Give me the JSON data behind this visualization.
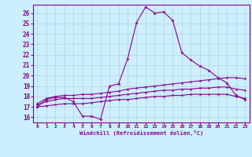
{
  "xlabel": "Windchill (Refroidissement éolien,°C)",
  "background_color": "#cceeff",
  "grid_color": "#aacccc",
  "line_color": "#880088",
  "xlim": [
    -0.5,
    23.5
  ],
  "ylim": [
    15.5,
    26.8
  ],
  "yticks": [
    16,
    17,
    18,
    19,
    20,
    21,
    22,
    23,
    24,
    25,
    26
  ],
  "xticks": [
    0,
    1,
    2,
    3,
    4,
    5,
    6,
    7,
    8,
    9,
    10,
    11,
    12,
    13,
    14,
    15,
    16,
    17,
    18,
    19,
    20,
    21,
    22,
    23
  ],
  "line1_x": [
    0,
    1,
    2,
    3,
    4,
    5,
    6,
    7,
    8,
    9,
    10,
    11,
    12,
    13,
    14,
    15,
    16,
    17,
    18,
    19,
    20,
    21,
    22,
    23
  ],
  "line1_y": [
    17.0,
    17.7,
    17.9,
    17.9,
    17.5,
    16.1,
    16.1,
    15.8,
    19.0,
    19.2,
    21.6,
    25.1,
    26.6,
    26.0,
    26.1,
    25.3,
    22.2,
    21.5,
    20.9,
    20.5,
    19.8,
    19.3,
    18.1,
    17.7
  ],
  "line2_x": [
    0,
    1,
    2,
    3,
    4,
    5,
    6,
    7,
    8,
    9,
    10,
    11,
    12,
    13,
    14,
    15,
    16,
    17,
    18,
    19,
    20,
    21,
    22,
    23
  ],
  "line2_y": [
    17.3,
    17.8,
    18.0,
    18.1,
    18.1,
    18.2,
    18.2,
    18.3,
    18.4,
    18.5,
    18.7,
    18.8,
    18.9,
    19.0,
    19.1,
    19.2,
    19.3,
    19.4,
    19.5,
    19.6,
    19.7,
    19.8,
    19.8,
    19.7
  ],
  "line3_x": [
    0,
    1,
    2,
    3,
    4,
    5,
    6,
    7,
    8,
    9,
    10,
    11,
    12,
    13,
    14,
    15,
    16,
    17,
    18,
    19,
    20,
    21,
    22,
    23
  ],
  "line3_y": [
    17.2,
    17.5,
    17.7,
    17.8,
    17.8,
    17.8,
    17.8,
    17.9,
    18.0,
    18.1,
    18.2,
    18.3,
    18.4,
    18.5,
    18.6,
    18.6,
    18.7,
    18.7,
    18.8,
    18.8,
    18.9,
    18.9,
    18.7,
    18.6
  ],
  "line4_x": [
    0,
    1,
    2,
    3,
    4,
    5,
    6,
    7,
    8,
    9,
    10,
    11,
    12,
    13,
    14,
    15,
    16,
    17,
    18,
    19,
    20,
    21,
    22,
    23
  ],
  "line4_y": [
    17.0,
    17.1,
    17.2,
    17.3,
    17.3,
    17.3,
    17.4,
    17.5,
    17.6,
    17.7,
    17.7,
    17.8,
    17.9,
    18.0,
    18.0,
    18.1,
    18.1,
    18.2,
    18.2,
    18.2,
    18.2,
    18.2,
    18.0,
    17.8
  ]
}
